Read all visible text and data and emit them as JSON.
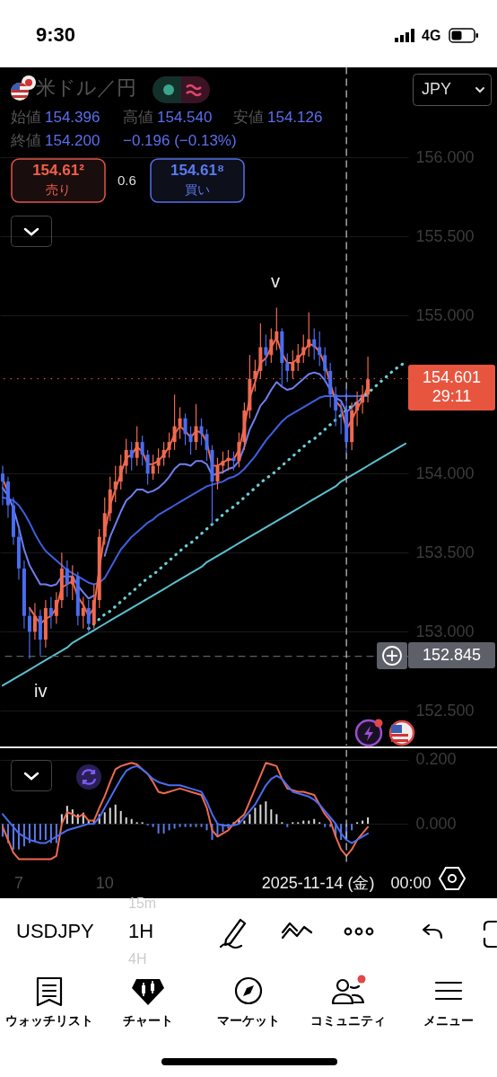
{
  "chart_data": [
    {
      "type": "candlestick",
      "title": "米ドル／円",
      "categories": [
        null,
        null,
        null,
        "7",
        null,
        null,
        null,
        null,
        null,
        null,
        null,
        null,
        null,
        null,
        null,
        null,
        null,
        null,
        null,
        "10",
        null,
        null,
        null,
        null,
        null,
        null,
        null,
        null,
        null,
        null,
        null,
        null,
        null,
        null,
        null,
        null,
        null,
        null,
        null,
        null,
        null,
        null,
        null,
        null,
        null,
        null,
        null,
        null,
        null,
        null,
        null,
        null,
        null,
        null,
        null,
        null,
        null,
        null,
        null,
        null,
        null,
        null,
        null,
        null,
        "2025-11-14 (金)　00:00",
        null,
        null,
        null,
        null,
        null,
        null,
        null,
        null,
        null,
        null,
        null
      ],
      "ohlc": [
        [
          154.0,
          154.05,
          153.8,
          153.95
        ],
        [
          153.95,
          153.98,
          153.72,
          153.8
        ],
        [
          153.8,
          153.85,
          153.55,
          153.6
        ],
        [
          153.6,
          153.65,
          153.33,
          153.4
        ],
        [
          153.4,
          153.45,
          153.02,
          153.1
        ],
        [
          153.1,
          153.15,
          152.83,
          153.0
        ],
        [
          153.0,
          153.18,
          152.95,
          153.1
        ],
        [
          153.1,
          153.14,
          152.85,
          152.95
        ],
        [
          152.95,
          153.2,
          152.9,
          153.15
        ],
        [
          153.15,
          153.22,
          153.02,
          153.1
        ],
        [
          153.1,
          153.25,
          153.05,
          153.2
        ],
        [
          153.2,
          153.5,
          153.15,
          153.4
        ],
        [
          153.4,
          153.45,
          153.22,
          153.3
        ],
        [
          153.3,
          153.42,
          153.2,
          153.35
        ],
        [
          153.35,
          153.38,
          153.04,
          153.1
        ],
        [
          153.1,
          153.22,
          153.02,
          153.15
        ],
        [
          153.15,
          153.2,
          153.0,
          153.05
        ],
        [
          153.05,
          153.3,
          153.02,
          153.2
        ],
        [
          153.2,
          153.65,
          153.15,
          153.6
        ],
        [
          153.6,
          153.85,
          153.55,
          153.75
        ],
        [
          153.75,
          153.98,
          153.7,
          153.9
        ],
        [
          153.9,
          154.05,
          153.82,
          153.95
        ],
        [
          153.95,
          154.12,
          153.9,
          154.05
        ],
        [
          154.05,
          154.22,
          154.0,
          154.15
        ],
        [
          154.15,
          154.2,
          154.02,
          154.1
        ],
        [
          154.1,
          154.3,
          154.05,
          154.2
        ],
        [
          154.2,
          154.24,
          154.05,
          154.12
        ],
        [
          154.12,
          154.15,
          153.93,
          154.0
        ],
        [
          154.0,
          154.12,
          153.96,
          154.05
        ],
        [
          154.05,
          154.16,
          154.0,
          154.1
        ],
        [
          154.1,
          154.2,
          154.05,
          154.15
        ],
        [
          154.15,
          154.26,
          154.1,
          154.2
        ],
        [
          154.2,
          154.5,
          154.15,
          154.3
        ],
        [
          154.3,
          154.42,
          154.22,
          154.35
        ],
        [
          154.35,
          154.38,
          154.18,
          154.25
        ],
        [
          154.25,
          154.3,
          154.12,
          154.2
        ],
        [
          154.2,
          154.44,
          154.15,
          154.3
        ],
        [
          154.3,
          154.35,
          154.18,
          154.25
        ],
        [
          154.25,
          154.28,
          154.08,
          154.15
        ],
        [
          154.15,
          154.18,
          153.68,
          153.95
        ],
        [
          153.95,
          154.1,
          153.9,
          154.05
        ],
        [
          154.05,
          154.14,
          154.0,
          154.08
        ],
        [
          154.08,
          154.15,
          154.02,
          154.1
        ],
        [
          154.1,
          154.14,
          154.02,
          154.08
        ],
        [
          154.08,
          154.26,
          154.04,
          154.2
        ],
        [
          154.2,
          154.45,
          154.15,
          154.4
        ],
        [
          154.4,
          154.75,
          154.35,
          154.6
        ],
        [
          154.6,
          154.72,
          154.52,
          154.65
        ],
        [
          154.65,
          154.95,
          154.6,
          154.8
        ],
        [
          154.8,
          154.88,
          154.68,
          154.75
        ],
        [
          154.75,
          154.92,
          154.7,
          154.85
        ],
        [
          154.85,
          155.05,
          154.78,
          154.9
        ],
        [
          154.9,
          154.92,
          154.55,
          154.7
        ],
        [
          154.7,
          154.76,
          154.58,
          154.65
        ],
        [
          154.65,
          154.78,
          154.6,
          154.7
        ],
        [
          154.7,
          154.82,
          154.65,
          154.75
        ],
        [
          154.75,
          154.88,
          154.7,
          154.8
        ],
        [
          154.8,
          155.02,
          154.74,
          154.85
        ],
        [
          154.85,
          154.92,
          154.72,
          154.8
        ],
        [
          154.8,
          154.9,
          154.68,
          154.75
        ],
        [
          154.75,
          154.8,
          154.58,
          154.65
        ],
        [
          154.65,
          154.7,
          154.42,
          154.5
        ],
        [
          154.5,
          154.55,
          154.3,
          154.4
        ],
        [
          154.4,
          154.45,
          154.25,
          154.396
        ],
        [
          154.396,
          154.54,
          154.126,
          154.2
        ],
        [
          154.2,
          154.45,
          154.15,
          154.4
        ],
        [
          154.4,
          154.52,
          154.3,
          154.45
        ],
        [
          154.45,
          154.56,
          154.38,
          154.5
        ],
        [
          154.5,
          154.74,
          154.45,
          154.597
        ],
        null,
        null,
        null,
        null,
        null,
        null,
        null
      ],
      "colors": [
        "#4a6cf0",
        "#4a6cf0",
        "#4a6cf0",
        "#4a6cf0",
        "#4a6cf0",
        "#4a6cf0",
        "#f0694f",
        "#4a6cf0",
        "#f0694f",
        "#4a6cf0",
        "#f0694f",
        "#f0694f",
        "#4a6cf0",
        "#f0694f",
        "#4a6cf0",
        "#f0694f",
        "#4a6cf0",
        "#f0694f",
        "#f0694f",
        "#f0694f",
        "#f0694f",
        "#f0694f",
        "#f0694f",
        "#f0694f",
        "#4a6cf0",
        "#f0694f",
        "#4a6cf0",
        "#4a6cf0",
        "#f0694f",
        "#f0694f",
        "#f0694f",
        "#f0694f",
        "#f0694f",
        "#f0694f",
        "#4a6cf0",
        "#4a6cf0",
        "#f0694f",
        "#4a6cf0",
        "#4a6cf0",
        "#4a6cf0",
        "#f0694f",
        "#f0694f",
        "#f0694f",
        "#4a6cf0",
        "#f0694f",
        "#f0694f",
        "#f0694f",
        "#f0694f",
        "#f0694f",
        "#4a6cf0",
        "#f0694f",
        "#f0694f",
        "#4a6cf0",
        "#4a6cf0",
        "#f0694f",
        "#f0694f",
        "#f0694f",
        "#f0694f",
        "#4a6cf0",
        "#4a6cf0",
        "#4a6cf0",
        "#4a6cf0",
        "#4a6cf0",
        "#4a6cf0",
        "#4a6cf0",
        "#f0694f",
        "#f0694f",
        "#f0694f",
        "#f0694f",
        null,
        null,
        null,
        null,
        null,
        null,
        null
      ],
      "series": [
        {
          "type": "line",
          "color": "#3f5fe0",
          "values": [
            153.85,
            153.84,
            153.83,
            153.8,
            153.75,
            153.69,
            153.62,
            153.56,
            153.51,
            153.48,
            153.45,
            153.42,
            153.39,
            153.37,
            153.35,
            153.33,
            153.31,
            153.3,
            153.31,
            153.34,
            153.4,
            153.46,
            153.52,
            153.56,
            153.6,
            153.63,
            153.66,
            153.69,
            153.71,
            153.74,
            153.76,
            153.78,
            153.8,
            153.82,
            153.84,
            153.86,
            153.88,
            153.9,
            153.92,
            153.93,
            153.94,
            153.95,
            153.97,
            153.98,
            154.0,
            154.03,
            154.07,
            154.11,
            154.16,
            154.21,
            154.25,
            154.29,
            154.33,
            154.36,
            154.38,
            154.4,
            154.42,
            154.44,
            154.46,
            154.48,
            154.49,
            154.49,
            154.49,
            154.49,
            154.49,
            154.49,
            154.49,
            154.49,
            154.49,
            null,
            null,
            null,
            null,
            null,
            null,
            null
          ]
        },
        {
          "type": "line",
          "color": "#6f7ff0",
          "values": [
            153.91,
            153.86,
            153.78,
            153.66,
            153.52,
            153.42,
            153.36,
            153.3,
            153.3,
            153.29,
            153.3,
            153.35,
            153.35,
            153.35,
            153.29,
            153.25,
            153.21,
            153.23,
            null,
            153.48,
            153.6,
            153.68,
            153.76,
            153.83,
            153.86,
            153.9,
            153.9,
            153.88,
            153.89,
            153.91,
            153.94,
            153.98,
            154.03,
            154.06,
            154.06,
            154.05,
            154.08,
            154.08,
            154.06,
            153.99,
            154.0,
            154.01,
            154.03,
            154.04,
            154.08,
            154.17,
            154.28,
            154.35,
            154.43,
            154.47,
            154.53,
            154.58,
            154.55,
            154.53,
            154.54,
            154.57,
            154.6,
            154.63,
            154.64,
            154.63,
            154.59,
            154.53,
            154.48,
            154.46,
            154.39,
            154.42,
            154.45,
            154.48,
            null,
            null,
            null,
            null,
            null,
            null,
            null,
            null
          ]
        },
        {
          "type": "line",
          "color": "#f0694f",
          "values": [
            153.97,
            153.88,
            null,
            null,
            null,
            153.15,
            153.1,
            153.05,
            153.08,
            153.1,
            153.15,
            153.28,
            153.3,
            153.32,
            153.22,
            153.17,
            153.1,
            153.15,
            153.4,
            153.62,
            153.8,
            153.9,
            154.0,
            154.1,
            154.12,
            154.17,
            154.14,
            154.06,
            154.06,
            154.08,
            154.12,
            154.17,
            154.25,
            154.3,
            154.27,
            154.23,
            154.27,
            154.26,
            154.2,
            154.05,
            154.05,
            154.07,
            154.09,
            154.09,
            154.15,
            154.3,
            154.48,
            154.58,
            154.7,
            154.73,
            154.8,
            154.86,
            154.76,
            154.7,
            154.7,
            154.73,
            154.77,
            154.82,
            154.81,
            154.77,
            154.69,
            154.57,
            154.46,
            154.42,
            154.28,
            154.34,
            154.41,
            154.47,
            154.55,
            null,
            null,
            null,
            null,
            null,
            null,
            null
          ]
        },
        {
          "type": "line",
          "color": "#5bc0d0",
          "line_style": "solid",
          "values": [
            152.66,
            152.68,
            152.7,
            152.72,
            152.74,
            152.76,
            152.78,
            152.8,
            152.82,
            152.84,
            152.86,
            152.88,
            152.9,
            152.93,
            152.95,
            152.97,
            152.99,
            153.01,
            153.03,
            153.05,
            153.07,
            153.09,
            153.11,
            153.13,
            153.15,
            153.17,
            153.19,
            153.21,
            153.23,
            153.25,
            153.27,
            153.29,
            153.31,
            153.33,
            153.35,
            153.37,
            153.39,
            153.41,
            153.44,
            153.46,
            153.48,
            153.5,
            153.52,
            153.54,
            153.56,
            153.58,
            153.6,
            153.62,
            153.64,
            153.66,
            153.68,
            153.7,
            153.72,
            153.74,
            153.76,
            153.78,
            153.8,
            153.82,
            153.84,
            153.86,
            153.88,
            153.9,
            153.92,
            153.95,
            153.97,
            153.99,
            154.01,
            154.03,
            154.05,
            154.07,
            154.09,
            154.11,
            154.13,
            154.15,
            154.17,
            154.19
          ]
        },
        {
          "type": "line",
          "color": "#6ad0d8",
          "line_style": "dotted",
          "values": [
            null,
            null,
            null,
            null,
            null,
            null,
            null,
            null,
            null,
            null,
            null,
            null,
            null,
            null,
            null,
            null,
            153.02,
            153.05,
            153.08,
            153.11,
            153.13,
            153.16,
            153.19,
            153.22,
            153.25,
            153.28,
            153.31,
            153.34,
            153.36,
            153.39,
            153.42,
            153.45,
            153.48,
            153.51,
            153.54,
            153.56,
            153.59,
            153.62,
            153.65,
            153.68,
            153.71,
            153.74,
            153.77,
            153.79,
            153.82,
            153.85,
            153.88,
            153.91,
            153.94,
            153.97,
            153.99,
            154.02,
            154.05,
            154.08,
            154.11,
            154.14,
            154.17,
            154.2,
            154.22,
            154.25,
            154.28,
            154.31,
            154.34,
            154.37,
            154.4,
            154.43,
            154.45,
            154.48,
            154.51,
            154.54,
            154.57,
            154.6,
            154.63,
            154.66,
            154.68,
            154.71
          ]
        }
      ],
      "ylim": [
        152.28,
        156.57
      ],
      "yticks": [
        {
          "value": 152.5,
          "label": "152.500"
        },
        {
          "value": 153,
          "label": "153.000"
        },
        {
          "value": 153.5,
          "label": "153.500"
        },
        {
          "value": 154,
          "label": "154.000"
        },
        {
          "value": 155,
          "label": "155.000"
        },
        {
          "value": 155.5,
          "label": "155.500"
        },
        {
          "value": 156,
          "label": "156.000"
        }
      ],
      "grid": "y",
      "tick_labels": "y",
      "ref_lines": [
        {
          "axis": "y",
          "value": 152.845,
          "label": "152.845",
          "color": "#5d6068",
          "line_style": "dashed"
        },
        {
          "axis": "y",
          "value": 154.601,
          "label": "154.601",
          "color": "#e8553f",
          "line_style": "dotted"
        },
        {
          "axis": "x",
          "value": "2025-11-14 (金)　00:00",
          "color": "#bbbbbb",
          "line_style": "dashed"
        }
      ],
      "annotations": [
        "v",
        "iv",
        "29:11",
        "始値",
        "154.396",
        "高値",
        "154.540",
        "安値",
        "154.126",
        "終値",
        "154.200",
        "−0.196 (−0.13%)",
        "154.61²",
        "売り",
        "0.6",
        "154.61⁸",
        "買い",
        "JPY"
      ]
    },
    {
      "type": "line",
      "categories": [
        null,
        null,
        null,
        "7",
        null,
        null,
        null,
        null,
        null,
        null,
        null,
        null,
        null,
        null,
        null,
        null,
        null,
        null,
        null,
        "10",
        null,
        null,
        null,
        null,
        null,
        null,
        null,
        null,
        null,
        null,
        null,
        null,
        null,
        null,
        null,
        null,
        null,
        null,
        null,
        null,
        null,
        null,
        null,
        null,
        null,
        null,
        null,
        null,
        null,
        null,
        null,
        null,
        null,
        null,
        null,
        null,
        null,
        null,
        null,
        null,
        null,
        null,
        null,
        null,
        "2025-11-14 (金)　00:00",
        null,
        null,
        null,
        null,
        null,
        null,
        null,
        null,
        null,
        null,
        null
      ],
      "series": [
        {
          "type": "bar",
          "colors": [
            "#5b7bea",
            "#5b7bea",
            "#5b7bea",
            "#5b7bea",
            "#5b7bea",
            "#5b7bea",
            "#5b7bea",
            "#5b7bea",
            "#5b7bea",
            "#5b7bea",
            "#5b7bea",
            "#d9d9d9",
            "#d9d9d9",
            "#d9d9d9",
            "#d9d9d9",
            "#d9d9d9",
            "#d9d9d9",
            "#d9d9d9",
            "#d9d9d9",
            "#d9d9d9",
            "#d9d9d9",
            "#d9d9d9",
            "#d9d9d9",
            "#d9d9d9",
            "#d9d9d9",
            "#d9d9d9",
            "#d9d9d9",
            "#5b7bea",
            "#5b7bea",
            "#5b7bea",
            "#5b7bea",
            "#5b7bea",
            "#5b7bea",
            "#5b7bea",
            "#5b7bea",
            "#5b7bea",
            "#5b7bea",
            "#5b7bea",
            "#5b7bea",
            "#5b7bea",
            "#5b7bea",
            "#5b7bea",
            "#5b7bea",
            "#d9d9d9",
            "#d9d9d9",
            "#d9d9d9",
            "#d9d9d9",
            "#d9d9d9",
            "#d9d9d9",
            "#d9d9d9",
            "#d9d9d9",
            "#d9d9d9",
            "#d9d9d9",
            "#5b7bea",
            "#d9d9d9",
            "#d9d9d9",
            "#d9d9d9",
            "#d9d9d9",
            "#d9d9d9",
            "#d9d9d9",
            "#5b7bea",
            "#5b7bea",
            "#5b7bea",
            "#5b7bea",
            "#5b7bea",
            "#5b7bea",
            "#d9d9d9",
            "#d9d9d9",
            "#d9d9d9",
            null,
            null,
            null,
            null,
            null,
            null,
            null
          ],
          "values": [
            -0.04,
            -0.06,
            -0.08,
            -0.08,
            -0.07,
            -0.06,
            -0.055,
            -0.05,
            -0.05,
            -0.06,
            -0.06,
            0.03,
            0.056,
            0.045,
            0.03,
            0.035,
            0.01,
            0.01,
            0.03,
            0.036,
            0.05,
            0.06,
            0.04,
            0.02,
            0.015,
            0.005,
            0.005,
            -0.005,
            -0.01,
            -0.03,
            -0.03,
            -0.02,
            -0.015,
            -0.01,
            -0.01,
            -0.01,
            -0.01,
            -0.01,
            -0.02,
            -0.05,
            -0.04,
            -0.025,
            -0.015,
            0.005,
            0.015,
            0.01,
            0.03,
            0.05,
            0.06,
            0.07,
            0.045,
            0.03,
            0.005,
            -0.01,
            0.005,
            0.005,
            0.01,
            0.01,
            0.015,
            0.005,
            -0.01,
            -0.01,
            -0.04,
            -0.05,
            -0.05,
            -0.02,
            0.005,
            0.01,
            0.02,
            null,
            null,
            null,
            null,
            null,
            null,
            null
          ]
        },
        {
          "type": "line",
          "color": "#f0694f",
          "values": [
            -0.01,
            -0.05,
            -0.09,
            -0.11,
            -0.11,
            -0.11,
            -0.11,
            -0.11,
            -0.11,
            -0.11,
            -0.1,
            0.0,
            0.036,
            0.03,
            0.02,
            0.03,
            0.01,
            0.01,
            0.05,
            0.086,
            0.13,
            0.17,
            0.18,
            0.185,
            0.19,
            0.185,
            0.17,
            0.156,
            0.13,
            0.1,
            0.095,
            0.1,
            0.105,
            0.11,
            0.105,
            0.1,
            0.095,
            0.09,
            0.05,
            -0.02,
            -0.04,
            -0.03,
            -0.02,
            0.0,
            0.015,
            0.03,
            0.07,
            0.11,
            0.15,
            0.19,
            0.185,
            0.18,
            0.14,
            0.11,
            0.105,
            0.1,
            0.1,
            0.095,
            0.09,
            0.06,
            0.03,
            0.01,
            -0.04,
            -0.08,
            -0.1,
            -0.08,
            -0.05,
            -0.03,
            -0.01,
            null,
            null,
            null,
            null,
            null,
            null,
            null
          ]
        },
        {
          "type": "line",
          "color": "#4a6cf0",
          "values": [
            0.03,
            0.01,
            -0.01,
            -0.03,
            -0.04,
            -0.05,
            -0.055,
            -0.06,
            -0.06,
            -0.05,
            -0.04,
            -0.03,
            -0.02,
            -0.015,
            -0.01,
            -0.005,
            0.0,
            0.0,
            0.02,
            0.05,
            0.08,
            0.11,
            0.14,
            0.165,
            0.175,
            0.18,
            0.17,
            0.155,
            0.14,
            0.13,
            0.125,
            0.12,
            0.12,
            0.12,
            0.115,
            0.11,
            0.105,
            0.1,
            0.07,
            0.03,
            0.0,
            -0.005,
            -0.005,
            -0.005,
            0.0,
            0.02,
            0.04,
            0.06,
            0.09,
            0.12,
            0.14,
            0.15,
            0.14,
            0.12,
            0.1,
            0.095,
            0.09,
            0.085,
            0.075,
            0.06,
            0.04,
            0.02,
            0.0,
            -0.03,
            -0.05,
            -0.06,
            -0.05,
            -0.04,
            -0.03,
            null,
            null,
            null,
            null,
            null,
            null,
            null
          ]
        }
      ],
      "ylim": [
        -0.12,
        0.23
      ],
      "yticks": [
        {
          "value": 0.2,
          "label": "0.200"
        },
        {
          "value": 0,
          "label": "0.000"
        }
      ],
      "grid": "y",
      "ref_lines": [
        {
          "axis": "x",
          "value": "2025-11-14 (金)　00:00",
          "color": "#bbbbbb",
          "line_style": "dashed"
        }
      ]
    },
    {
      "type": "other",
      "annotations": [
        "9:30",
        "4G",
        "USDJPY",
        "1H",
        "15m",
        "4H",
        "ウォッチリスト",
        "チャート",
        "マーケット",
        "コミュニティ",
        "メニュー"
      ]
    }
  ]
}
